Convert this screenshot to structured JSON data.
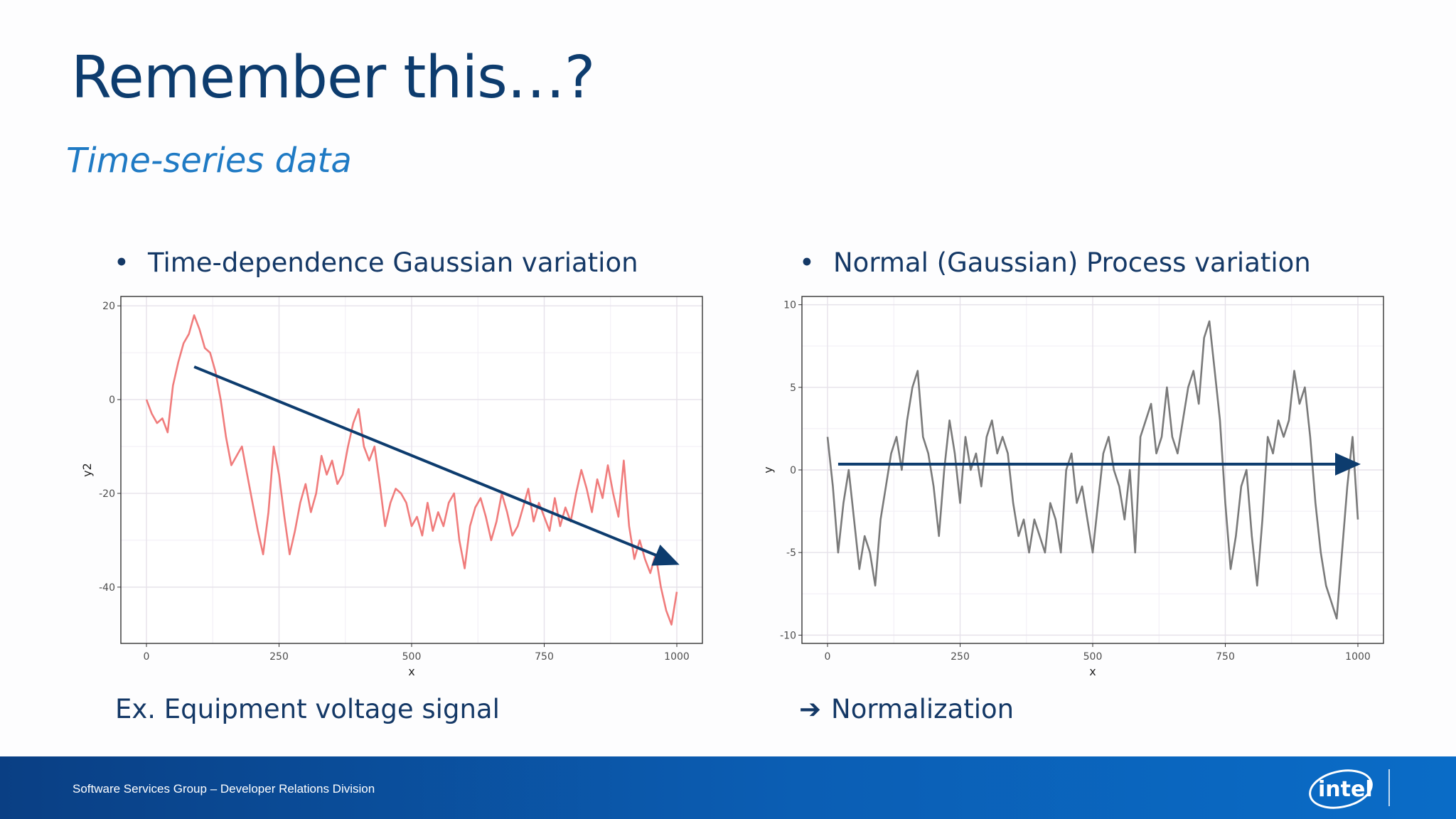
{
  "slide": {
    "title": "Remember this…?",
    "subtitle": "Time-series data",
    "left_bullet": "Time-dependence Gaussian variation",
    "right_bullet": "Normal (Gaussian) Process variation",
    "left_caption": "Ex. Equipment voltage signal",
    "right_caption": "Normalization",
    "bullet_glyph": "•",
    "arrow_glyph": "➔"
  },
  "footer": {
    "text": "Software Services Group – Developer Relations Division",
    "logo_text": "intel"
  },
  "colors": {
    "title": "#0d3c6e",
    "subtitle": "#1f7ac4",
    "left_series": "#f07c7c",
    "right_series": "#7a7a7a",
    "arrow": "#0d3c6e",
    "footer": "#0b5eb4"
  },
  "chart_data": [
    {
      "type": "line",
      "xlabel": "x",
      "ylabel": "y2",
      "xlim": [
        0,
        1000
      ],
      "ylim": [
        -52,
        22
      ],
      "xticks": [
        0,
        250,
        500,
        750,
        1000
      ],
      "yticks": [
        -40,
        -20,
        0,
        20
      ],
      "grid": true,
      "series": [
        {
          "color": "#f07c7c",
          "x": [
            0,
            10,
            20,
            30,
            40,
            50,
            60,
            70,
            80,
            90,
            100,
            110,
            120,
            130,
            140,
            150,
            160,
            170,
            180,
            190,
            200,
            210,
            220,
            230,
            240,
            250,
            260,
            270,
            280,
            290,
            300,
            310,
            320,
            330,
            340,
            350,
            360,
            370,
            380,
            390,
            400,
            410,
            420,
            430,
            440,
            450,
            460,
            470,
            480,
            490,
            500,
            510,
            520,
            530,
            540,
            550,
            560,
            570,
            580,
            590,
            600,
            610,
            620,
            630,
            640,
            650,
            660,
            670,
            680,
            690,
            700,
            710,
            720,
            730,
            740,
            750,
            760,
            770,
            780,
            790,
            800,
            810,
            820,
            830,
            840,
            850,
            860,
            870,
            880,
            890,
            900,
            910,
            920,
            930,
            940,
            950,
            960,
            970,
            980,
            990,
            1000
          ],
          "y": [
            0,
            -3,
            -5,
            -4,
            -7,
            3,
            8,
            12,
            14,
            18,
            15,
            11,
            10,
            6,
            0,
            -8,
            -14,
            -12,
            -10,
            -16,
            -22,
            -28,
            -33,
            -24,
            -10,
            -16,
            -25,
            -33,
            -28,
            -22,
            -18,
            -24,
            -20,
            -12,
            -16,
            -13,
            -18,
            -16,
            -10,
            -5,
            -2,
            -10,
            -13,
            -10,
            -18,
            -27,
            -22,
            -19,
            -20,
            -22,
            -27,
            -25,
            -29,
            -22,
            -28,
            -24,
            -27,
            -22,
            -20,
            -30,
            -36,
            -27,
            -23,
            -21,
            -25,
            -30,
            -26,
            -20,
            -24,
            -29,
            -27,
            -23,
            -19,
            -26,
            -22,
            -25,
            -28,
            -21,
            -27,
            -23,
            -26,
            -20,
            -15,
            -19,
            -24,
            -17,
            -21,
            -14,
            -20,
            -25,
            -13,
            -27,
            -34,
            -30,
            -34,
            -37,
            -33,
            -40,
            -45,
            -48,
            -41
          ]
        }
      ],
      "trend_arrow": {
        "from": [
          90,
          7
        ],
        "to": [
          1000,
          -35
        ]
      }
    },
    {
      "type": "line",
      "xlabel": "x",
      "ylabel": "y",
      "xlim": [
        0,
        1000
      ],
      "ylim": [
        -10.5,
        10.5
      ],
      "xticks": [
        0,
        250,
        500,
        750,
        1000
      ],
      "yticks": [
        -10,
        -5,
        0,
        5,
        10
      ],
      "grid": true,
      "series": [
        {
          "color": "#7a7a7a",
          "x": [
            0,
            10,
            20,
            30,
            40,
            50,
            60,
            70,
            80,
            90,
            100,
            110,
            120,
            130,
            140,
            150,
            160,
            170,
            180,
            190,
            200,
            210,
            220,
            230,
            240,
            250,
            260,
            270,
            280,
            290,
            300,
            310,
            320,
            330,
            340,
            350,
            360,
            370,
            380,
            390,
            400,
            410,
            420,
            430,
            440,
            450,
            460,
            470,
            480,
            490,
            500,
            510,
            520,
            530,
            540,
            550,
            560,
            570,
            580,
            590,
            600,
            610,
            620,
            630,
            640,
            650,
            660,
            670,
            680,
            690,
            700,
            710,
            720,
            730,
            740,
            750,
            760,
            770,
            780,
            790,
            800,
            810,
            820,
            830,
            840,
            850,
            860,
            870,
            880,
            890,
            900,
            910,
            920,
            930,
            940,
            950,
            960,
            970,
            980,
            990,
            1000
          ],
          "y": [
            2,
            -1,
            -5,
            -2,
            0,
            -3,
            -6,
            -4,
            -5,
            -7,
            -3,
            -1,
            1,
            2,
            0,
            3,
            5,
            6,
            2,
            1,
            -1,
            -4,
            0,
            3,
            1,
            -2,
            2,
            0,
            1,
            -1,
            2,
            3,
            1,
            2,
            1,
            -2,
            -4,
            -3,
            -5,
            -3,
            -4,
            -5,
            -2,
            -3,
            -5,
            0,
            1,
            -2,
            -1,
            -3,
            -5,
            -2,
            1,
            2,
            0,
            -1,
            -3,
            0,
            -5,
            2,
            3,
            4,
            1,
            2,
            5,
            2,
            1,
            3,
            5,
            6,
            4,
            8,
            9,
            6,
            3,
            -2,
            -6,
            -4,
            -1,
            0,
            -4,
            -7,
            -3,
            2,
            1,
            3,
            2,
            3,
            6,
            4,
            5,
            2,
            -2,
            -5,
            -7,
            -8,
            -9,
            -5,
            -1,
            2,
            -3
          ]
        }
      ],
      "trend_arrow": {
        "from": [
          20,
          0.35
        ],
        "to": [
          1000,
          0.35
        ]
      }
    }
  ]
}
